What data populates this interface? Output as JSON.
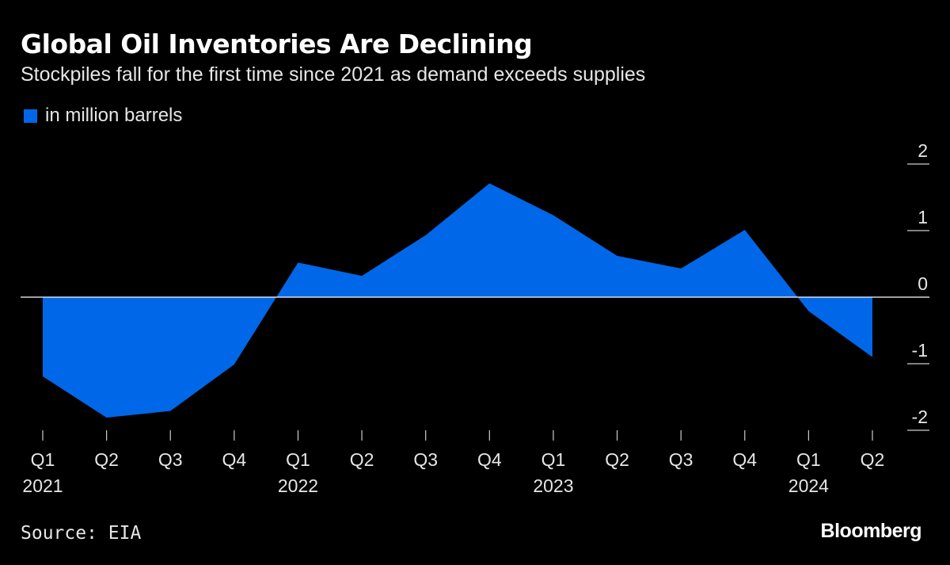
{
  "chart_data": {
    "type": "area",
    "title": "Global Oil Inventories Are Declining",
    "subtitle": "Stockpiles fall for the first time since 2021 as demand exceeds supplies",
    "legend": [
      {
        "name": "in million barrels",
        "color": "#0068e8"
      }
    ],
    "legend_placement": "top-left",
    "categories": [
      "Q1 2021",
      "Q2 2021",
      "Q3 2021",
      "Q4 2021",
      "Q1 2022",
      "Q2 2022",
      "Q3 2022",
      "Q4 2022",
      "Q1 2023",
      "Q2 2023",
      "Q3 2023",
      "Q4 2023",
      "Q1 2024",
      "Q2 2024"
    ],
    "x_tick_labels": [
      {
        "q": "Q1",
        "year": "2021"
      },
      {
        "q": "Q2",
        "year": ""
      },
      {
        "q": "Q3",
        "year": ""
      },
      {
        "q": "Q4",
        "year": ""
      },
      {
        "q": "Q1",
        "year": "2022"
      },
      {
        "q": "Q2",
        "year": ""
      },
      {
        "q": "Q3",
        "year": ""
      },
      {
        "q": "Q4",
        "year": ""
      },
      {
        "q": "Q1",
        "year": "2023"
      },
      {
        "q": "Q2",
        "year": ""
      },
      {
        "q": "Q3",
        "year": ""
      },
      {
        "q": "Q4",
        "year": ""
      },
      {
        "q": "Q1",
        "year": "2024"
      },
      {
        "q": "Q2",
        "year": ""
      }
    ],
    "values": [
      -1.19,
      -1.81,
      -1.71,
      -1.01,
      0.52,
      0.32,
      0.93,
      1.71,
      1.23,
      0.62,
      0.43,
      1.01,
      -0.21,
      -0.9
    ],
    "ylim": [
      -2,
      2
    ],
    "y_ticks": [
      2,
      1,
      0,
      -1,
      -2
    ],
    "y_axis_side": "right",
    "grid": false,
    "zero_line": true
  },
  "colors": {
    "background": "#000000",
    "area": "#0068e8",
    "text": "#e6e6e6"
  },
  "footer": {
    "source": "Source: EIA",
    "brand": "Bloomberg"
  }
}
